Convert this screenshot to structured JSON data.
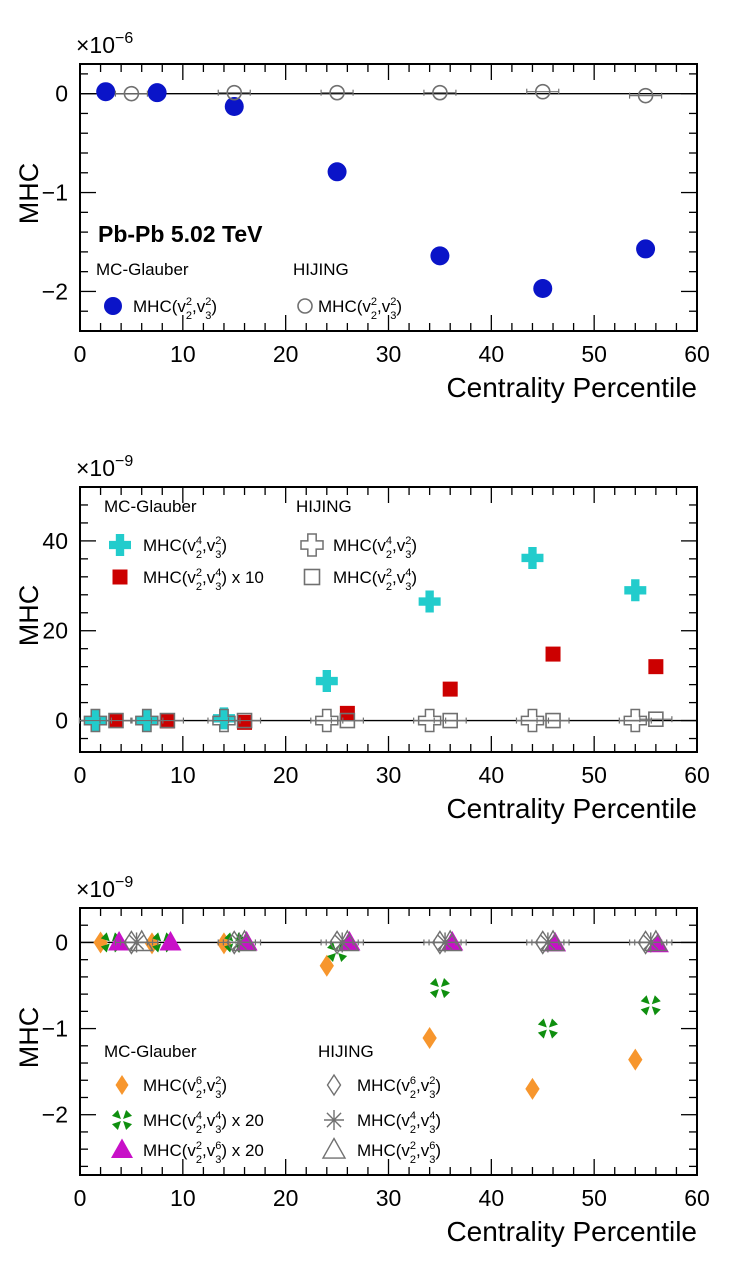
{
  "chart_data": [
    {
      "type": "scatter",
      "multiplier_base": "×10",
      "multiplier_exp": "−6",
      "ylabel": "MHC",
      "xlabel": "Centrality Percentile",
      "xlim": [
        0,
        60
      ],
      "ylim": [
        -2.4,
        0.3
      ],
      "xticks": [
        0,
        10,
        20,
        30,
        40,
        50,
        60
      ],
      "yticks": [
        -2,
        -1,
        0
      ],
      "ytick_labels": [
        "−2",
        "−1",
        "0"
      ],
      "annotation": "Pb-Pb 5.02 TeV",
      "legend_headers": [
        "MC-Glauber",
        "HIJING"
      ],
      "series": [
        {
          "name": "MHC(v2²,v3²)",
          "group": "MC-Glauber",
          "marker": "circle",
          "filled": true,
          "color": "#0a14c8",
          "x": [
            2.5,
            7.5,
            15,
            25,
            35,
            45,
            55
          ],
          "y": [
            0.02,
            0.01,
            -0.13,
            -0.79,
            -1.64,
            -1.97,
            -1.57
          ]
        },
        {
          "name": "MHC(v2²,v3²)",
          "group": "HIJING",
          "marker": "circle",
          "filled": false,
          "color": "#707070",
          "x": [
            5,
            15,
            25,
            35,
            45,
            55
          ],
          "y": [
            0.0,
            0.01,
            0.01,
            0.01,
            0.02,
            -0.02
          ]
        }
      ],
      "legend": [
        {
          "header": "MC-Glauber",
          "label": "MHC(v",
          "sub1": "2",
          "sup1": "2",
          "sub2": "3",
          "sup2": "2",
          "tail": ")"
        },
        {
          "header": "HIJING",
          "label": "MHC(v",
          "sub1": "2",
          "sup1": "2",
          "sub2": "3",
          "sup2": "2",
          "tail": ")"
        }
      ]
    },
    {
      "type": "scatter",
      "multiplier_base": "×10",
      "multiplier_exp": "−9",
      "ylabel": "MHC",
      "xlabel": "Centrality Percentile",
      "xlim": [
        0,
        60
      ],
      "ylim": [
        -7,
        52
      ],
      "xticks": [
        0,
        10,
        20,
        30,
        40,
        50,
        60
      ],
      "yticks": [
        0,
        20,
        40
      ],
      "ytick_labels": [
        "0",
        "20",
        "40"
      ],
      "legend_headers": [
        "MC-Glauber",
        "HIJING"
      ],
      "series": [
        {
          "name": "MHC(v2⁴,v3²)",
          "group": "MC-Glauber",
          "marker": "cross",
          "filled": true,
          "color": "#22cccc",
          "x": [
            1.5,
            6.5,
            14,
            24,
            34,
            44,
            54
          ],
          "y": [
            0.1,
            0.1,
            0.5,
            8.8,
            26.5,
            36.2,
            29.0
          ]
        },
        {
          "name": "MHC(v2²,v3⁴) x 10",
          "group": "MC-Glauber",
          "marker": "square",
          "filled": true,
          "color": "#cc0000",
          "x": [
            3.5,
            8.5,
            16,
            26,
            36,
            46,
            56
          ],
          "y": [
            0.0,
            -0.1,
            -0.4,
            1.6,
            7.0,
            14.8,
            12.0
          ]
        },
        {
          "name": "MHC(v2⁴,v3²)",
          "group": "HIJING",
          "marker": "cross",
          "filled": false,
          "color": "#707070",
          "x": [
            1.5,
            6.5,
            14,
            24,
            34,
            44,
            54
          ],
          "y": [
            0,
            0,
            0,
            0,
            0,
            0,
            0
          ]
        },
        {
          "name": "MHC(v2²,v3⁴)",
          "group": "HIJING",
          "marker": "square",
          "filled": false,
          "color": "#707070",
          "x": [
            3.5,
            8.5,
            16,
            26,
            36,
            46,
            56
          ],
          "y": [
            0,
            0,
            0,
            0,
            0,
            0,
            0.3
          ]
        }
      ],
      "legend": [
        {
          "header": "MC-Glauber",
          "label": "MHC(v",
          "sub1": "2",
          "sup1": "4",
          "sub2": "3",
          "sup2": "2",
          "tail": ")"
        },
        {
          "header": "MC-Glauber",
          "label": "MHC(v",
          "sub1": "2",
          "sup1": "2",
          "sub2": "3",
          "sup2": "4",
          "tail": ") x 10"
        },
        {
          "header": "HIJING",
          "label": "MHC(v",
          "sub1": "2",
          "sup1": "4",
          "sub2": "3",
          "sup2": "2",
          "tail": ")"
        },
        {
          "header": "HIJING",
          "label": "MHC(v",
          "sub1": "2",
          "sup1": "2",
          "sub2": "3",
          "sup2": "4",
          "tail": ")"
        }
      ]
    },
    {
      "type": "scatter",
      "multiplier_base": "×10",
      "multiplier_exp": "−9",
      "ylabel": "MHC",
      "xlabel": "Centrality Percentile",
      "xlim": [
        0,
        60
      ],
      "ylim": [
        -2.7,
        0.4
      ],
      "xticks": [
        0,
        10,
        20,
        30,
        40,
        50,
        60
      ],
      "yticks": [
        -2,
        -1,
        0
      ],
      "ytick_labels": [
        "−2",
        "−1",
        "0"
      ],
      "legend_headers": [
        "MC-Glauber",
        "HIJING"
      ],
      "series": [
        {
          "name": "MHC(v2⁶,v3²)",
          "group": "MC-Glauber",
          "marker": "diamond",
          "filled": true,
          "color": "#f7962d",
          "x": [
            2,
            7,
            14,
            24,
            34,
            44,
            54
          ],
          "y": [
            0.0,
            -0.01,
            -0.01,
            -0.27,
            -1.11,
            -1.7,
            -1.36
          ]
        },
        {
          "name": "MHC(v2⁴,v3⁴) x 20",
          "group": "MC-Glauber",
          "marker": "star",
          "filled": true,
          "color": "#0f8f0f",
          "x": [
            3,
            8,
            15,
            25,
            35,
            45.5,
            55.5
          ],
          "y": [
            0.0,
            0.0,
            0.0,
            -0.11,
            -0.53,
            -1.0,
            -0.73
          ]
        },
        {
          "name": "MHC(v2²,v3⁶) x 20",
          "group": "MC-Glauber",
          "marker": "triangle",
          "filled": true,
          "color": "#c810c8",
          "x": [
            3.8,
            8.8,
            16.2,
            26.2,
            36.2,
            46.2,
            56.2
          ],
          "y": [
            0,
            0,
            0,
            0,
            0,
            -0.01,
            -0.02
          ]
        },
        {
          "name": "MHC(v2⁶,v3²)",
          "group": "HIJING",
          "marker": "diamond",
          "filled": false,
          "color": "#707070",
          "x": [
            5,
            15,
            25,
            35,
            45,
            55
          ],
          "y": [
            0,
            0,
            0,
            0,
            0,
            0
          ]
        },
        {
          "name": "MHC(v2⁴,v3⁴)",
          "group": "HIJING",
          "marker": "star",
          "filled": false,
          "color": "#707070",
          "x": [
            5.5,
            15.5,
            25.5,
            35.5,
            45.5,
            55.5
          ],
          "y": [
            0,
            0,
            0,
            0,
            0,
            0
          ]
        },
        {
          "name": "MHC(v2²,v3⁶)",
          "group": "HIJING",
          "marker": "triangle",
          "filled": false,
          "color": "#707070",
          "x": [
            6,
            16,
            26,
            36,
            46,
            56
          ],
          "y": [
            0,
            0,
            0,
            0,
            0,
            0
          ]
        }
      ],
      "legend": [
        {
          "header": "MC-Glauber",
          "label": "MHC(v",
          "sub1": "2",
          "sup1": "6",
          "sub2": "3",
          "sup2": "2",
          "tail": ")"
        },
        {
          "header": "MC-Glauber",
          "label": "MHC(v",
          "sub1": "2",
          "sup1": "4",
          "sub2": "3",
          "sup2": "4",
          "tail": ") x 20"
        },
        {
          "header": "MC-Glauber",
          "label": "MHC(v",
          "sub1": "2",
          "sup1": "2",
          "sub2": "3",
          "sup2": "6",
          "tail": ") x 20"
        },
        {
          "header": "HIJING",
          "label": "MHC(v",
          "sub1": "2",
          "sup1": "6",
          "sub2": "3",
          "sup2": "2",
          "tail": ")"
        },
        {
          "header": "HIJING",
          "label": "MHC(v",
          "sub1": "2",
          "sup1": "4",
          "sub2": "3",
          "sup2": "4",
          "tail": ")"
        },
        {
          "header": "HIJING",
          "label": "MHC(v",
          "sub1": "2",
          "sup1": "2",
          "sub2": "3",
          "sup2": "6",
          "tail": ")"
        }
      ]
    }
  ]
}
